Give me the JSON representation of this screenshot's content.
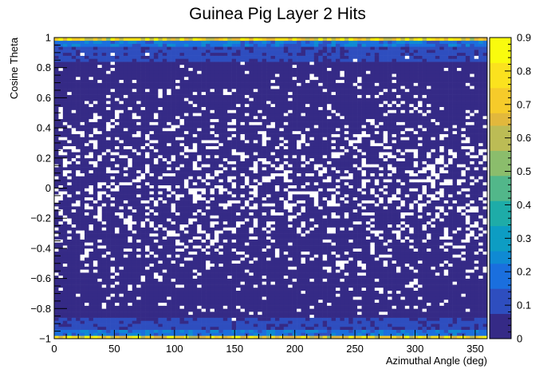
{
  "chart_data": {
    "type": "heatmap",
    "title": "Guinea Pig Layer 2 Hits",
    "xlabel": "Azimuthal Angle (deg)",
    "ylabel": "Cosine Theta",
    "xlim": [
      0,
      360
    ],
    "ylim": [
      -1,
      1
    ],
    "x_bins": 100,
    "y_bins": 100,
    "x_ticks": [
      "0",
      "50",
      "100",
      "150",
      "200",
      "250",
      "300",
      "350"
    ],
    "y_ticks": [
      "−1",
      "−0.8",
      "−0.6",
      "−0.4",
      "−0.2",
      "0",
      "0.2",
      "0.4",
      "0.6",
      "0.8",
      "1"
    ],
    "z_range": [
      0,
      0.9
    ],
    "z_ticks": [
      "0",
      "0.1",
      "0.2",
      "0.3",
      "0.4",
      "0.5",
      "0.6",
      "0.7",
      "0.8",
      "0.9"
    ],
    "colorscale": "viridis-like (blue to yellow)",
    "empty_bins": "white",
    "approx_values": {
      "cos_theta_edge_rows_max": 0.9,
      "cos_theta_near_edges": 0.2,
      "cos_theta_central_typical": 0.03
    },
    "grid": false,
    "legend": "colorbar-right"
  }
}
